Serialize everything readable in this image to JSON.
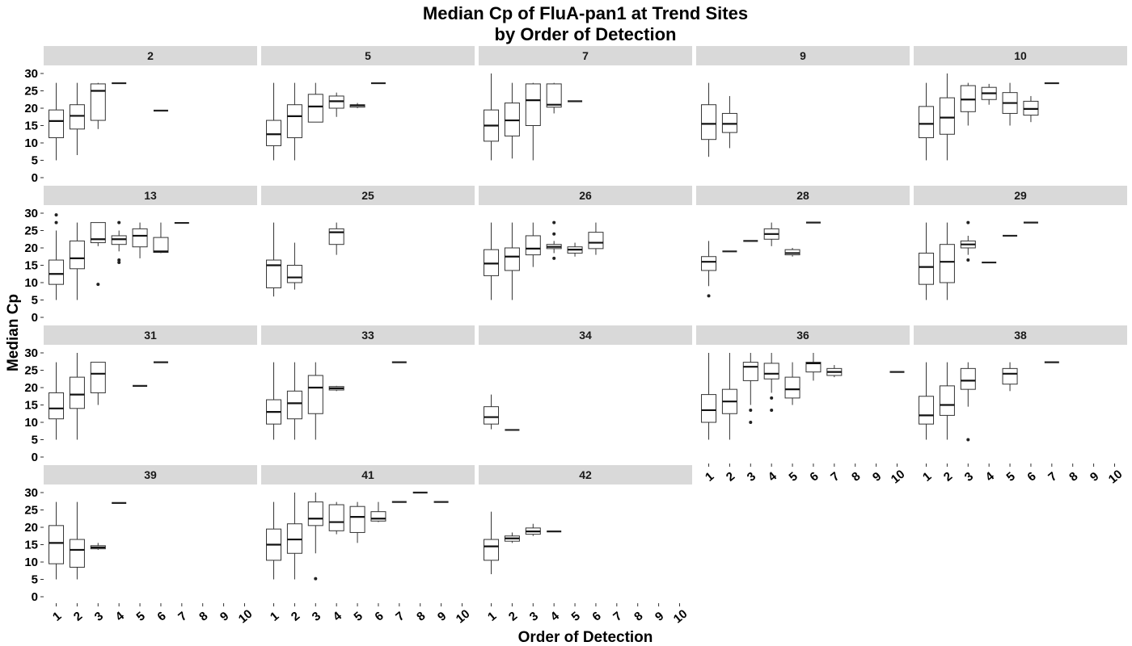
{
  "chart_data": {
    "type": "boxplot",
    "title": [
      "Median Cp of FluA-pan1 at Trend Sites",
      "by Order of Detection"
    ],
    "xlabel": "Order of Detection",
    "ylabel": "Median Cp",
    "x_ticks": [
      "1",
      "2",
      "3",
      "4",
      "5",
      "6",
      "7",
      "8",
      "9",
      "10"
    ],
    "y_ticks": [
      0,
      5,
      10,
      15,
      20,
      25,
      30
    ],
    "ylim": [
      0,
      30
    ],
    "facet_layout": {
      "columns": 5,
      "rows": 4
    },
    "colors": {
      "strip": "#d9d9d9",
      "box": "#333333"
    },
    "facets": [
      {
        "label": "2",
        "boxes": [
          {
            "x": 1,
            "min": 5,
            "q1": 11.5,
            "median": 16.3,
            "q3": 19.5,
            "max": 27.3
          },
          {
            "x": 2,
            "min": 6.5,
            "q1": 14,
            "median": 17.8,
            "q3": 21,
            "max": 27.3
          },
          {
            "x": 3,
            "min": 14,
            "q1": 16.5,
            "median": 25,
            "q3": 27,
            "max": 27.3
          },
          {
            "x": 4,
            "median": 27.2
          },
          {
            "x": 6,
            "median": 19.3
          }
        ]
      },
      {
        "label": "5",
        "boxes": [
          {
            "x": 1,
            "min": 5,
            "q1": 9.2,
            "median": 12.5,
            "q3": 16.5,
            "max": 27.3
          },
          {
            "x": 2,
            "min": 5,
            "q1": 11.5,
            "median": 17.7,
            "q3": 21,
            "max": 27.3
          },
          {
            "x": 3,
            "min": 16,
            "q1": 16,
            "median": 20.5,
            "q3": 24,
            "max": 27.3
          },
          {
            "x": 4,
            "min": 17.5,
            "q1": 20,
            "median": 22,
            "q3": 23.5,
            "max": 24.5
          },
          {
            "x": 5,
            "min": 20,
            "q1": 20.3,
            "median": 20.8,
            "q3": 21,
            "max": 21.5
          },
          {
            "x": 6,
            "median": 27.2
          }
        ]
      },
      {
        "label": "7",
        "boxes": [
          {
            "x": 1,
            "min": 5,
            "q1": 10.5,
            "median": 15,
            "q3": 19.5,
            "max": 30
          },
          {
            "x": 2,
            "min": 5.5,
            "q1": 12,
            "median": 16.5,
            "q3": 21.5,
            "max": 27.3
          },
          {
            "x": 3,
            "min": 5,
            "q1": 15,
            "median": 22.3,
            "q3": 27,
            "max": 27.3
          },
          {
            "x": 4,
            "min": 18.5,
            "q1": 20.3,
            "median": 21,
            "q3": 27,
            "max": 27.3
          },
          {
            "x": 5,
            "median": 22
          }
        ]
      },
      {
        "label": "9",
        "boxes": [
          {
            "x": 1,
            "min": 6,
            "q1": 11,
            "median": 15.5,
            "q3": 21,
            "max": 27.3
          },
          {
            "x": 2,
            "min": 8.5,
            "q1": 13,
            "median": 15.5,
            "q3": 18.5,
            "max": 23.5
          }
        ]
      },
      {
        "label": "10",
        "boxes": [
          {
            "x": 1,
            "min": 5,
            "q1": 11.5,
            "median": 15.5,
            "q3": 20.5,
            "max": 27.3
          },
          {
            "x": 2,
            "min": 5,
            "q1": 12.5,
            "median": 17.3,
            "q3": 23,
            "max": 30
          },
          {
            "x": 3,
            "min": 15,
            "q1": 19,
            "median": 22.5,
            "q3": 26.5,
            "max": 27.3
          },
          {
            "x": 4,
            "min": 21,
            "q1": 22.5,
            "median": 24.3,
            "q3": 26,
            "max": 27
          },
          {
            "x": 5,
            "min": 15,
            "q1": 18.5,
            "median": 21.5,
            "q3": 24.5,
            "max": 27.3
          },
          {
            "x": 6,
            "min": 16,
            "q1": 18,
            "median": 19.8,
            "q3": 22,
            "max": 23.5
          },
          {
            "x": 7,
            "median": 27.2
          }
        ]
      },
      {
        "label": "13",
        "boxes": [
          {
            "x": 1,
            "min": 5,
            "q1": 9.5,
            "median": 12.5,
            "q3": 16.5,
            "max": 25,
            "outliers": [
              27.3,
              29.5
            ]
          },
          {
            "x": 2,
            "min": 5,
            "q1": 14,
            "median": 17,
            "q3": 22,
            "max": 27.3
          },
          {
            "x": 3,
            "min": 20.5,
            "q1": 21.5,
            "median": 22.5,
            "q3": 27.3,
            "max": 27.3,
            "outliers": [
              9.5
            ]
          },
          {
            "x": 4,
            "min": 19,
            "q1": 21,
            "median": 22.5,
            "q3": 23.5,
            "max": 25,
            "outliers": [
              27.3,
              16.5,
              15.8
            ]
          },
          {
            "x": 5,
            "min": 17,
            "q1": 20.3,
            "median": 23.5,
            "q3": 25.5,
            "max": 27.3
          },
          {
            "x": 6,
            "min": 18.5,
            "q1": 18.7,
            "median": 19,
            "q3": 23,
            "max": 27.3
          },
          {
            "x": 7,
            "median": 27.2
          }
        ]
      },
      {
        "label": "25",
        "boxes": [
          {
            "x": 1,
            "min": 6,
            "q1": 8.5,
            "median": 15,
            "q3": 16.5,
            "max": 27.3
          },
          {
            "x": 2,
            "min": 8,
            "q1": 10,
            "median": 11.5,
            "q3": 15,
            "max": 21.5
          },
          {
            "x": 4,
            "min": 18,
            "q1": 21,
            "median": 24.5,
            "q3": 25.5,
            "max": 27.3
          }
        ]
      },
      {
        "label": "26",
        "boxes": [
          {
            "x": 1,
            "min": 5,
            "q1": 12,
            "median": 15.5,
            "q3": 19.5,
            "max": 27.3
          },
          {
            "x": 2,
            "min": 5,
            "q1": 13.5,
            "median": 17.5,
            "q3": 20,
            "max": 27.3
          },
          {
            "x": 3,
            "min": 14.5,
            "q1": 18,
            "median": 19.8,
            "q3": 23.5,
            "max": 27.3
          },
          {
            "x": 4,
            "min": 18.5,
            "q1": 19.8,
            "median": 20.3,
            "q3": 21,
            "max": 22,
            "outliers": [
              27.3,
              24,
              17
            ]
          },
          {
            "x": 5,
            "min": 17.5,
            "q1": 18.5,
            "median": 19.5,
            "q3": 20.3,
            "max": 21.5
          },
          {
            "x": 6,
            "min": 18,
            "q1": 19.8,
            "median": 21.5,
            "q3": 24.5,
            "max": 27.3
          }
        ]
      },
      {
        "label": "28",
        "boxes": [
          {
            "x": 1,
            "min": 9,
            "q1": 13.5,
            "median": 16,
            "q3": 17.5,
            "max": 22,
            "outliers": [
              6.2
            ]
          },
          {
            "x": 2,
            "median": 19
          },
          {
            "x": 3,
            "median": 22
          },
          {
            "x": 4,
            "min": 20.5,
            "q1": 22.5,
            "median": 24,
            "q3": 25.5,
            "max": 27.3
          },
          {
            "x": 5,
            "min": 17.5,
            "q1": 18,
            "median": 18.5,
            "q3": 19.5,
            "max": 20
          },
          {
            "x": 6,
            "median": 27.3
          }
        ]
      },
      {
        "label": "29",
        "boxes": [
          {
            "x": 1,
            "min": 5,
            "q1": 9.5,
            "median": 14.5,
            "q3": 18.5,
            "max": 27.3
          },
          {
            "x": 2,
            "min": 5,
            "q1": 10,
            "median": 16,
            "q3": 21,
            "max": 27.3
          },
          {
            "x": 3,
            "min": 18,
            "q1": 20,
            "median": 21,
            "q3": 22,
            "max": 23.5,
            "outliers": [
              27.3,
              16.5
            ]
          },
          {
            "x": 4,
            "median": 15.8
          },
          {
            "x": 5,
            "median": 23.5
          },
          {
            "x": 6,
            "median": 27.3
          }
        ]
      },
      {
        "label": "31",
        "boxes": [
          {
            "x": 1,
            "min": 5,
            "q1": 11,
            "median": 14,
            "q3": 18.5,
            "max": 27.3
          },
          {
            "x": 2,
            "min": 5,
            "q1": 14,
            "median": 18,
            "q3": 23,
            "max": 30
          },
          {
            "x": 3,
            "min": 15,
            "q1": 18.5,
            "median": 24,
            "q3": 27.3,
            "max": 27.3
          },
          {
            "x": 5,
            "median": 20.5
          },
          {
            "x": 6,
            "median": 27.3
          }
        ]
      },
      {
        "label": "33",
        "boxes": [
          {
            "x": 1,
            "min": 5,
            "q1": 9.5,
            "median": 13,
            "q3": 16.5,
            "max": 27.3
          },
          {
            "x": 2,
            "min": 5,
            "q1": 11,
            "median": 15.5,
            "q3": 19,
            "max": 27.3
          },
          {
            "x": 3,
            "min": 5,
            "q1": 12.5,
            "median": 20,
            "q3": 23.5,
            "max": 27.3
          },
          {
            "x": 4,
            "min": 19,
            "q1": 19.3,
            "median": 19.8,
            "q3": 20.3,
            "max": 20.5
          },
          {
            "x": 7,
            "median": 27.3
          }
        ]
      },
      {
        "label": "34",
        "boxes": [
          {
            "x": 1,
            "min": 8,
            "q1": 9.5,
            "median": 11.5,
            "q3": 14.5,
            "max": 18
          },
          {
            "x": 2,
            "median": 7.8
          }
        ]
      },
      {
        "label": "36",
        "boxes": [
          {
            "x": 1,
            "min": 5,
            "q1": 10,
            "median": 13.5,
            "q3": 18,
            "max": 30
          },
          {
            "x": 2,
            "min": 5,
            "q1": 12.5,
            "median": 16,
            "q3": 19.5,
            "max": 30
          },
          {
            "x": 3,
            "min": 15,
            "q1": 22,
            "median": 26,
            "q3": 27.3,
            "max": 30,
            "outliers": [
              13.5,
              10
            ]
          },
          {
            "x": 4,
            "min": 18.5,
            "q1": 22.5,
            "median": 24,
            "q3": 27,
            "max": 30,
            "outliers": [
              17,
              13.5
            ]
          },
          {
            "x": 5,
            "min": 15,
            "q1": 17,
            "median": 19.5,
            "q3": 23,
            "max": 27.3
          },
          {
            "x": 6,
            "min": 22,
            "q1": 24.5,
            "median": 27,
            "q3": 27.3,
            "max": 30
          },
          {
            "x": 7,
            "min": 23,
            "q1": 23.5,
            "median": 24.5,
            "q3": 25.5,
            "max": 26.5
          },
          {
            "x": 10,
            "median": 24.5
          }
        ]
      },
      {
        "label": "38",
        "boxes": [
          {
            "x": 1,
            "min": 5,
            "q1": 9.5,
            "median": 12,
            "q3": 17.5,
            "max": 27.3
          },
          {
            "x": 2,
            "min": 5,
            "q1": 12,
            "median": 15,
            "q3": 20.5,
            "max": 27.3
          },
          {
            "x": 3,
            "min": 14.5,
            "q1": 19.5,
            "median": 22,
            "q3": 25.5,
            "max": 27.3,
            "outliers": [
              5
            ]
          },
          {
            "x": 5,
            "min": 19,
            "q1": 21,
            "median": 24,
            "q3": 25.5,
            "max": 27.3
          },
          {
            "x": 7,
            "median": 27.3
          }
        ]
      },
      {
        "label": "39",
        "boxes": [
          {
            "x": 1,
            "min": 5,
            "q1": 9.5,
            "median": 15.5,
            "q3": 20.5,
            "max": 27.3
          },
          {
            "x": 2,
            "min": 5,
            "q1": 8.5,
            "median": 13.5,
            "q3": 16.5,
            "max": 27.3
          },
          {
            "x": 3,
            "min": 13.5,
            "q1": 13.8,
            "median": 14.2,
            "q3": 14.7,
            "max": 15.5
          },
          {
            "x": 4,
            "median": 27
          }
        ]
      },
      {
        "label": "41",
        "boxes": [
          {
            "x": 1,
            "min": 5,
            "q1": 10.5,
            "median": 15,
            "q3": 19.5,
            "max": 27.3
          },
          {
            "x": 2,
            "min": 5,
            "q1": 12.5,
            "median": 16.5,
            "q3": 21,
            "max": 30
          },
          {
            "x": 3,
            "min": 12.5,
            "q1": 20.5,
            "median": 22.5,
            "q3": 27.3,
            "max": 30,
            "outliers": [
              5.2
            ]
          },
          {
            "x": 4,
            "min": 18,
            "q1": 19,
            "median": 21.5,
            "q3": 26.5,
            "max": 27.3
          },
          {
            "x": 5,
            "min": 15.5,
            "q1": 18.5,
            "median": 23,
            "q3": 26,
            "max": 27.3
          },
          {
            "x": 6,
            "min": 21.5,
            "q1": 21.8,
            "median": 22.5,
            "q3": 24.5,
            "max": 27.3
          },
          {
            "x": 7,
            "median": 27.3
          },
          {
            "x": 8,
            "median": 30
          },
          {
            "x": 9,
            "median": 27.3
          }
        ]
      },
      {
        "label": "42",
        "boxes": [
          {
            "x": 1,
            "min": 6.5,
            "q1": 10.5,
            "median": 14.5,
            "q3": 16.5,
            "max": 24.5
          },
          {
            "x": 2,
            "min": 15.5,
            "q1": 16,
            "median": 16.8,
            "q3": 17.5,
            "max": 18.5
          },
          {
            "x": 3,
            "min": 17.5,
            "q1": 18,
            "median": 18.8,
            "q3": 19.8,
            "max": 21
          },
          {
            "x": 4,
            "median": 18.8
          }
        ]
      }
    ]
  }
}
